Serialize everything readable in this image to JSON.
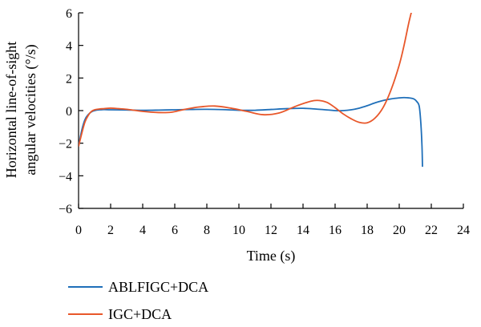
{
  "chart_data": {
    "type": "line",
    "title": "",
    "xlabel": "Time (s)",
    "ylabel_lines": [
      "Horizontal line-of-sight",
      "angular velocities (°/s)"
    ],
    "xlim": [
      0,
      24
    ],
    "ylim": [
      -6,
      6
    ],
    "x_ticks": [
      "0",
      "2",
      "4",
      "6",
      "8",
      "10",
      "12",
      "14",
      "16",
      "18",
      "20",
      "22",
      "24"
    ],
    "y_ticks": [
      "6",
      "4",
      "2",
      "0",
      "−2",
      "−4",
      "−6"
    ],
    "grid": false,
    "legend_position": "bottom-left",
    "series": [
      {
        "name": "ABLFIGC+DCA",
        "color": "#1f6fb9",
        "x": [
          0,
          0.2,
          0.4,
          0.6,
          0.8,
          1.0,
          1.3,
          1.6,
          2,
          3,
          4,
          5,
          6,
          7,
          8,
          9,
          10,
          11,
          12,
          13,
          14,
          15,
          16,
          16.5,
          17,
          17.5,
          18,
          18.5,
          19,
          19.5,
          20,
          20.3,
          20.6,
          20.9,
          21.1,
          21.25,
          21.35,
          21.42,
          21.45
        ],
        "y": [
          -2.2,
          -1.2,
          -0.55,
          -0.25,
          -0.08,
          0.0,
          0.05,
          0.06,
          0.05,
          0.04,
          0.02,
          0.03,
          0.05,
          0.07,
          0.08,
          0.06,
          0.02,
          0.02,
          0.07,
          0.12,
          0.14,
          0.08,
          0.0,
          0.0,
          0.05,
          0.15,
          0.3,
          0.48,
          0.62,
          0.72,
          0.78,
          0.8,
          0.78,
          0.72,
          0.55,
          0.25,
          -0.8,
          -2.2,
          -3.45
        ]
      },
      {
        "name": "IGC+DCA",
        "color": "#e8572a",
        "x": [
          0,
          0.2,
          0.4,
          0.6,
          0.8,
          1.0,
          1.3,
          1.6,
          2,
          2.5,
          3,
          4,
          5,
          5.8,
          6.5,
          7.5,
          8.5,
          9.5,
          10.5,
          11.5,
          12.5,
          13.5,
          14.5,
          15,
          15.5,
          16,
          16.5,
          17,
          17.5,
          18,
          18.5,
          19,
          19.5,
          20,
          20.3,
          20.6,
          20.8
        ],
        "y": [
          -2.2,
          -1.4,
          -0.7,
          -0.3,
          -0.05,
          0.05,
          0.1,
          0.12,
          0.15,
          0.12,
          0.08,
          -0.05,
          -0.12,
          -0.1,
          0.05,
          0.22,
          0.28,
          0.15,
          -0.05,
          -0.25,
          -0.15,
          0.25,
          0.58,
          0.62,
          0.5,
          0.18,
          -0.2,
          -0.5,
          -0.72,
          -0.75,
          -0.45,
          0.2,
          1.3,
          2.8,
          4.0,
          5.4,
          6.2
        ]
      }
    ]
  }
}
